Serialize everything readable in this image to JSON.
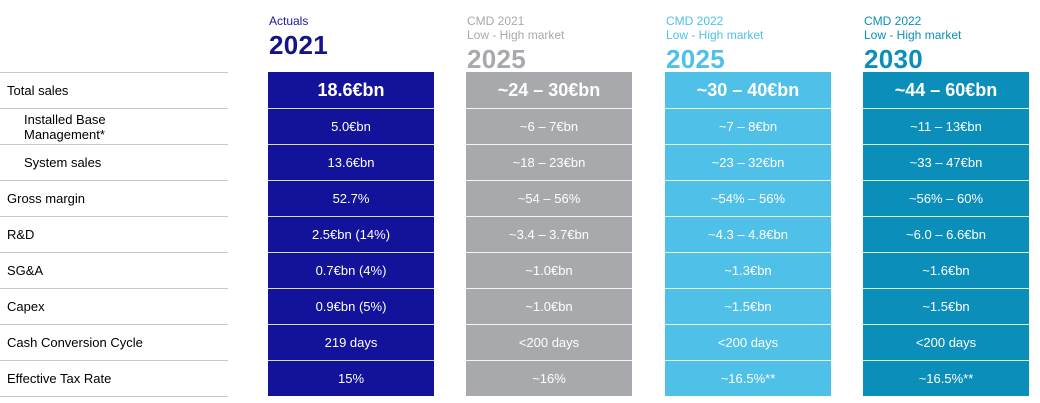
{
  "columns": [
    {
      "sub1": "Actuals",
      "sub2": "",
      "year": "2021"
    },
    {
      "sub1": "CMD 2021",
      "sub2": "Low - High market",
      "year": "2025"
    },
    {
      "sub1": "CMD 2022",
      "sub2": "Low - High market",
      "year": "2025"
    },
    {
      "sub1": "CMD 2022",
      "sub2": "Low - High market",
      "year": "2030"
    }
  ],
  "rows": [
    {
      "label": "Total sales",
      "values": [
        "18.6€bn",
        "~24 – 30€bn",
        "~30 –  40€bn",
        "~44 –  60€bn"
      ]
    },
    {
      "label": "Installed Base Management*",
      "values": [
        "5.0€bn",
        "~6 – 7€bn",
        "~7 –  8€bn",
        "~11 –  13€bn"
      ]
    },
    {
      "label": "System sales",
      "values": [
        "13.6€bn",
        "~18 – 23€bn",
        "~23 –  32€bn",
        "~33 –  47€bn"
      ]
    },
    {
      "label": "Gross margin",
      "values": [
        "52.7%",
        "~54 – 56%",
        "~54% –  56%",
        "~56% –  60%"
      ]
    },
    {
      "label": "R&D",
      "values": [
        "2.5€bn (14%)",
        "~3.4 – 3.7€bn",
        "~4.3 –  4.8€bn",
        "~6.0 –  6.6€bn"
      ]
    },
    {
      "label": "SG&A",
      "values": [
        "0.7€bn (4%)",
        "~1.0€bn",
        "~1.3€bn",
        "~1.6€bn"
      ]
    },
    {
      "label": "Capex",
      "values": [
        "0.9€bn (5%)",
        "~1.0€bn",
        "~1.5€bn",
        "~1.5€bn"
      ]
    },
    {
      "label": "Cash Conversion Cycle",
      "values": [
        "219 days",
        "<200 days",
        "<200 days",
        "<200 days"
      ]
    },
    {
      "label": "Effective Tax Rate",
      "values": [
        "15%",
        "~16%",
        "~16.5%**",
        "~16.5%**"
      ]
    }
  ],
  "colors": {
    "actuals": "#13129a",
    "cmd2021": "#a7a9ac",
    "cmd2022_2025": "#4fc0e8",
    "cmd2022_2030": "#0b8fba"
  }
}
